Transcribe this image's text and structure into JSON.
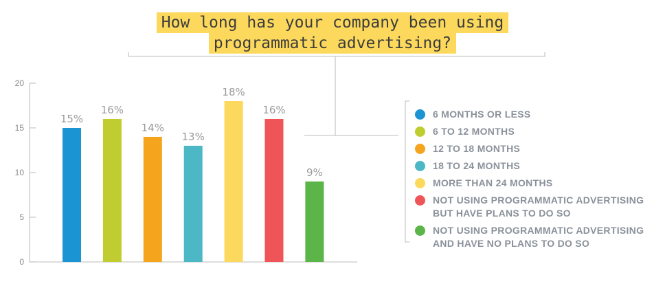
{
  "chart_data": {
    "type": "bar",
    "title": [
      "How long has your company been using",
      "programmatic advertising?"
    ],
    "categories": [
      "6 MONTHS OR LESS",
      "6 TO 12 MONTHS",
      "12 TO 18 MONTHS",
      "18 TO 24 MONTHS",
      "MORE THAN 24 MONTHS",
      "NOT USING PROGRAMMATIC ADVERTISING BUT HAVE PLANS TO DO SO",
      "NOT USING PROGRAMMATIC ADVERTISING AND HAVE NO PLANS TO DO SO"
    ],
    "values": [
      15,
      16,
      14,
      13,
      18,
      16,
      9
    ],
    "data_labels": [
      "15%",
      "16%",
      "14%",
      "13%",
      "18%",
      "16%",
      "9%"
    ],
    "colors": [
      "#1a94d3",
      "#bfcd30",
      "#f5a41d",
      "#4cb8c5",
      "#fcd95c",
      "#ef5459",
      "#5bb548"
    ],
    "ylim": [
      0,
      20
    ],
    "yticks": [
      0,
      5,
      10,
      15,
      20
    ],
    "xlabel": "",
    "ylabel": "",
    "grid": false,
    "legend_position": "right"
  },
  "legend": {
    "entries": [
      {
        "lines": [
          "6 MONTHS OR LESS"
        ]
      },
      {
        "lines": [
          "6 TO 12 MONTHS"
        ]
      },
      {
        "lines": [
          "12 TO 18 MONTHS"
        ]
      },
      {
        "lines": [
          "18 TO 24 MONTHS"
        ]
      },
      {
        "lines": [
          "MORE THAN 24 MONTHS"
        ]
      },
      {
        "lines": [
          "NOT USING PROGRAMMATIC ADVERTISING",
          "BUT HAVE PLANS TO DO SO"
        ]
      },
      {
        "lines": [
          "NOT USING PROGRAMMATIC ADVERTISING",
          "AND HAVE NO PLANS TO DO SO"
        ]
      }
    ]
  }
}
